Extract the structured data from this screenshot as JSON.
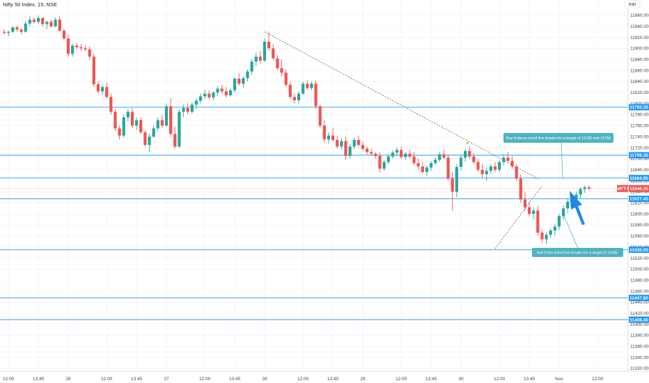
{
  "header": {
    "title": "Nifty 50 Index, 15, NSE",
    "currency": "INR"
  },
  "colors": {
    "up": "#26a69a",
    "down": "#ef5350",
    "hline": "#2196f3",
    "badge": "#2196f3",
    "callout": "#4fb3bf",
    "arrow": "#1e88e5"
  },
  "symbol_badge": {
    "name": "NIFTY",
    "price": "11646.35"
  },
  "hlines": [
    {
      "label": "11793.35",
      "value": 11793.35
    },
    {
      "label": "11706.35",
      "value": 11706.35
    },
    {
      "label": "11664.95",
      "value": 11664.95
    },
    {
      "label": "11627.45",
      "value": 11627.45
    },
    {
      "label": "11535.00",
      "value": 11535.0
    },
    {
      "label": "11447.80",
      "value": 11447.8
    },
    {
      "label": "11408.40",
      "value": 11408.4
    }
  ],
  "notes": {
    "buy": "Buy if above trend line breaks for a target of 11700 and 11750",
    "sell": "Sell if this  trend line breaks for a target of 11535"
  },
  "chart_data": {
    "type": "candlestick",
    "title": "Nifty 50 Index, 15, NSE",
    "ylim": [
      11315,
      11975
    ],
    "y_ticks": [
      "11960.00",
      "11940.00",
      "11920.00",
      "11900.00",
      "11880.00",
      "11860.00",
      "11840.00",
      "11820.00",
      "11800.00",
      "11780.00",
      "11760.00",
      "11740.00",
      "11720.00",
      "11700.00",
      "11680.00",
      "11660.00",
      "11640.00",
      "11620.00",
      "11600.00",
      "11580.00",
      "11560.00",
      "11540.00",
      "11520.00",
      "11500.00",
      "11480.00",
      "11460.00",
      "11440.00",
      "11420.00",
      "11400.00",
      "11380.00",
      "11360.00",
      "11340.00",
      "11320.00"
    ],
    "x_ticks": [
      "12:00",
      "13:45",
      "26",
      "12:00",
      "13:45",
      "27",
      "12:00",
      "13:45",
      "28",
      "12:00",
      "13:45",
      "29",
      "12:00",
      "13:45",
      "30",
      "12:00",
      "13:45",
      "Nov",
      "12:00"
    ],
    "x_tick_positions": [
      1,
      8,
      15,
      24,
      31,
      38,
      47,
      54,
      61,
      70,
      77,
      84,
      93,
      100,
      107,
      116,
      123,
      130,
      139
    ],
    "bars_per_day": 25,
    "candles": [
      [
        11930,
        11935,
        11925,
        11928
      ],
      [
        11928,
        11932,
        11922,
        11930
      ],
      [
        11930,
        11940,
        11928,
        11938
      ],
      [
        11938,
        11942,
        11930,
        11934
      ],
      [
        11934,
        11937,
        11926,
        11930
      ],
      [
        11930,
        11950,
        11928,
        11945
      ],
      [
        11945,
        11958,
        11940,
        11952
      ],
      [
        11952,
        11956,
        11945,
        11948
      ],
      [
        11948,
        11960,
        11944,
        11955
      ],
      [
        11955,
        11957,
        11940,
        11944
      ],
      [
        11944,
        11950,
        11935,
        11948
      ],
      [
        11948,
        11952,
        11938,
        11940
      ],
      [
        11940,
        11956,
        11938,
        11952
      ],
      [
        11952,
        11958,
        11930,
        11932
      ],
      [
        11932,
        11936,
        11915,
        11918
      ],
      [
        11918,
        11925,
        11885,
        11890
      ],
      [
        11890,
        11908,
        11885,
        11905
      ],
      [
        11905,
        11910,
        11898,
        11902
      ],
      [
        11902,
        11908,
        11895,
        11900
      ],
      [
        11900,
        11905,
        11895,
        11898
      ],
      [
        11898,
        11903,
        11880,
        11885
      ],
      [
        11885,
        11890,
        11830,
        11835
      ],
      [
        11835,
        11840,
        11818,
        11822
      ],
      [
        11822,
        11835,
        11815,
        11830
      ],
      [
        11830,
        11838,
        11808,
        11812
      ],
      [
        11812,
        11818,
        11780,
        11785
      ],
      [
        11785,
        11790,
        11750,
        11755
      ],
      [
        11755,
        11760,
        11735,
        11742
      ],
      [
        11742,
        11780,
        11738,
        11775
      ],
      [
        11775,
        11790,
        11768,
        11785
      ],
      [
        11785,
        11792,
        11755,
        11760
      ],
      [
        11760,
        11775,
        11752,
        11770
      ],
      [
        11770,
        11775,
        11745,
        11748
      ],
      [
        11748,
        11752,
        11722,
        11725
      ],
      [
        11725,
        11745,
        11712,
        11740
      ],
      [
        11740,
        11760,
        11738,
        11755
      ],
      [
        11755,
        11775,
        11750,
        11770
      ],
      [
        11770,
        11780,
        11755,
        11760
      ],
      [
        11760,
        11800,
        11758,
        11795
      ],
      [
        11795,
        11810,
        11740,
        11745
      ],
      [
        11745,
        11758,
        11718,
        11722
      ],
      [
        11722,
        11790,
        11720,
        11785
      ],
      [
        11785,
        11798,
        11776,
        11792
      ],
      [
        11792,
        11800,
        11780,
        11785
      ],
      [
        11785,
        11802,
        11782,
        11798
      ],
      [
        11798,
        11810,
        11790,
        11805
      ],
      [
        11805,
        11818,
        11800,
        11813
      ],
      [
        11813,
        11825,
        11808,
        11818
      ],
      [
        11818,
        11824,
        11808,
        11811
      ],
      [
        11811,
        11822,
        11806,
        11820
      ],
      [
        11820,
        11832,
        11813,
        11827
      ],
      [
        11827,
        11834,
        11818,
        11822
      ],
      [
        11822,
        11830,
        11810,
        11815
      ],
      [
        11815,
        11828,
        11812,
        11824
      ],
      [
        11824,
        11848,
        11820,
        11845
      ],
      [
        11845,
        11855,
        11832,
        11836
      ],
      [
        11836,
        11850,
        11828,
        11846
      ],
      [
        11846,
        11862,
        11840,
        11858
      ],
      [
        11858,
        11880,
        11852,
        11876
      ],
      [
        11876,
        11892,
        11868,
        11885
      ],
      [
        11885,
        11895,
        11872,
        11878
      ],
      [
        11878,
        11918,
        11875,
        11912
      ],
      [
        11912,
        11930,
        11895,
        11900
      ],
      [
        11900,
        11908,
        11878,
        11882
      ],
      [
        11882,
        11888,
        11860,
        11864
      ],
      [
        11864,
        11880,
        11850,
        11856
      ],
      [
        11856,
        11862,
        11830,
        11834
      ],
      [
        11834,
        11840,
        11808,
        11812
      ],
      [
        11812,
        11818,
        11800,
        11806
      ],
      [
        11806,
        11822,
        11800,
        11818
      ],
      [
        11818,
        11840,
        11815,
        11836
      ],
      [
        11836,
        11842,
        11825,
        11828
      ],
      [
        11828,
        11840,
        11824,
        11836
      ],
      [
        11836,
        11842,
        11790,
        11795
      ],
      [
        11795,
        11798,
        11755,
        11760
      ],
      [
        11760,
        11770,
        11730,
        11735
      ],
      [
        11735,
        11748,
        11728,
        11742
      ],
      [
        11742,
        11756,
        11730,
        11734
      ],
      [
        11734,
        11742,
        11718,
        11722
      ],
      [
        11722,
        11738,
        11716,
        11732
      ],
      [
        11732,
        11740,
        11698,
        11705
      ],
      [
        11705,
        11726,
        11700,
        11722
      ],
      [
        11722,
        11738,
        11718,
        11734
      ],
      [
        11734,
        11742,
        11722,
        11725
      ],
      [
        11725,
        11732,
        11714,
        11718
      ],
      [
        11718,
        11722,
        11708,
        11712
      ],
      [
        11712,
        11718,
        11705,
        11709
      ],
      [
        11709,
        11712,
        11700,
        11705
      ],
      [
        11705,
        11712,
        11675,
        11682
      ],
      [
        11682,
        11698,
        11678,
        11694
      ],
      [
        11694,
        11708,
        11690,
        11704
      ],
      [
        11704,
        11715,
        11700,
        11711
      ],
      [
        11711,
        11720,
        11705,
        11716
      ],
      [
        11716,
        11722,
        11700,
        11703
      ],
      [
        11703,
        11712,
        11698,
        11709
      ],
      [
        11709,
        11716,
        11700,
        11704
      ],
      [
        11704,
        11712,
        11688,
        11692
      ],
      [
        11692,
        11700,
        11680,
        11686
      ],
      [
        11686,
        11694,
        11672,
        11676
      ],
      [
        11676,
        11688,
        11668,
        11684
      ],
      [
        11684,
        11696,
        11678,
        11692
      ],
      [
        11692,
        11702,
        11688,
        11698
      ],
      [
        11698,
        11712,
        11694,
        11708
      ],
      [
        11708,
        11716,
        11700,
        11702
      ],
      [
        11702,
        11708,
        11660,
        11664
      ],
      [
        11664,
        11676,
        11606,
        11640
      ],
      [
        11640,
        11690,
        11630,
        11685
      ],
      [
        11685,
        11708,
        11678,
        11702
      ],
      [
        11702,
        11718,
        11694,
        11714
      ],
      [
        11714,
        11722,
        11700,
        11704
      ],
      [
        11704,
        11710,
        11690,
        11694
      ],
      [
        11694,
        11700,
        11676,
        11680
      ],
      [
        11680,
        11690,
        11666,
        11672
      ],
      [
        11672,
        11684,
        11660,
        11678
      ],
      [
        11678,
        11690,
        11672,
        11686
      ],
      [
        11686,
        11694,
        11676,
        11680
      ],
      [
        11680,
        11698,
        11676,
        11694
      ],
      [
        11694,
        11708,
        11688,
        11702
      ],
      [
        11702,
        11712,
        11694,
        11696
      ],
      [
        11696,
        11704,
        11682,
        11686
      ],
      [
        11686,
        11690,
        11660,
        11664
      ],
      [
        11664,
        11672,
        11620,
        11626
      ],
      [
        11626,
        11640,
        11606,
        11612
      ],
      [
        11612,
        11622,
        11596,
        11600
      ],
      [
        11600,
        11612,
        11590,
        11606
      ],
      [
        11606,
        11615,
        11560,
        11566
      ],
      [
        11566,
        11572,
        11548,
        11554
      ],
      [
        11554,
        11566,
        11546,
        11562
      ],
      [
        11562,
        11574,
        11556,
        11570
      ],
      [
        11570,
        11582,
        11560,
        11577
      ],
      [
        11577,
        11600,
        11570,
        11596
      ],
      [
        11596,
        11615,
        11588,
        11610
      ],
      [
        11610,
        11628,
        11602,
        11622
      ],
      [
        11622,
        11634,
        11614,
        11628
      ],
      [
        11628,
        11640,
        11622,
        11635
      ],
      [
        11635,
        11648,
        11628,
        11645
      ],
      [
        11645,
        11652,
        11638,
        11648
      ],
      [
        11648,
        11652,
        11642,
        11646
      ]
    ],
    "trendlines": [
      {
        "from": [
          61,
          11930
        ],
        "to": [
          125,
          11664
        ]
      },
      {
        "from": [
          115,
          11537
        ],
        "to": [
          126,
          11651
        ]
      }
    ]
  }
}
